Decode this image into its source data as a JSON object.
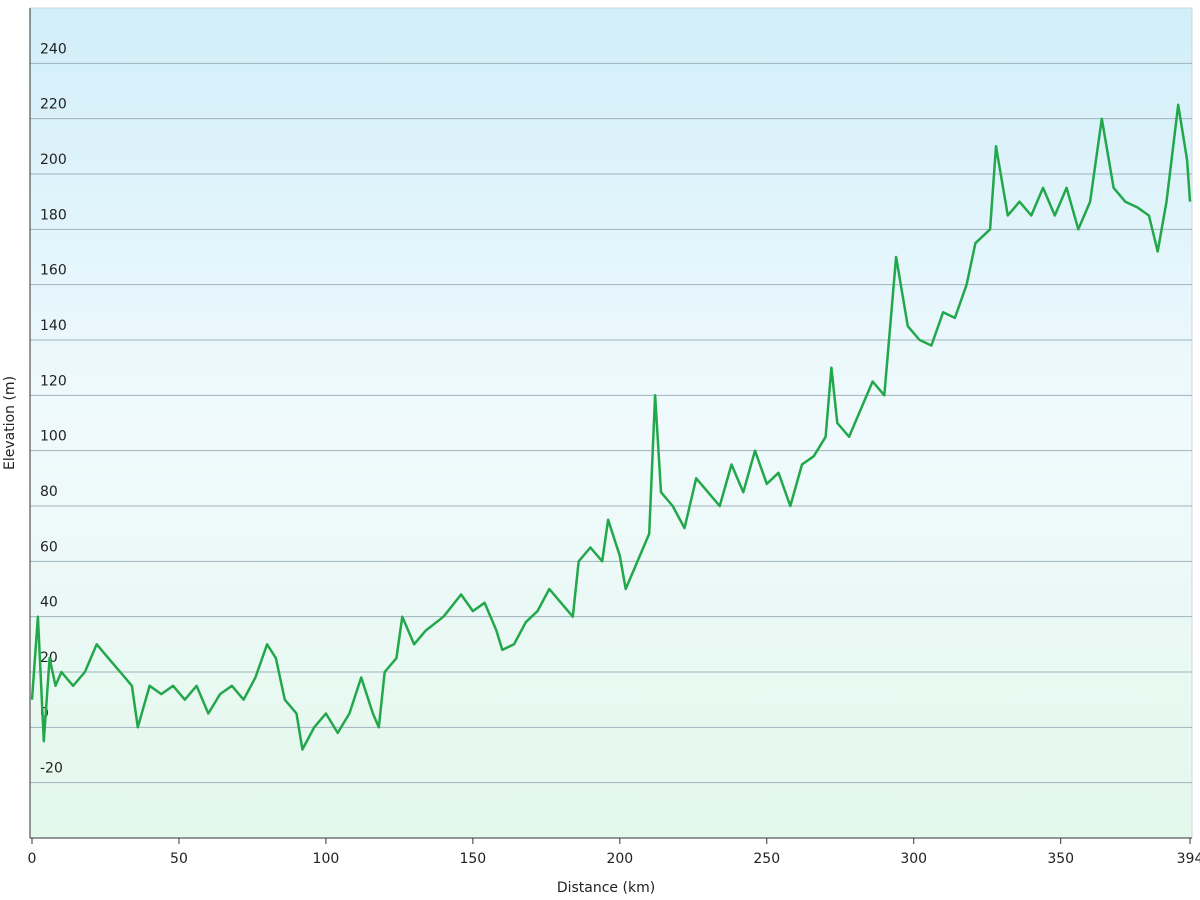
{
  "chart_data": {
    "type": "line",
    "x_label": "Distance (km)",
    "y_label": "Elevation (m)",
    "xlim": [
      0,
      394
    ],
    "xticks": [
      0,
      50,
      100,
      150,
      200,
      250,
      300,
      350,
      394
    ],
    "ylim": [
      -40,
      260
    ],
    "yticks": [
      -20,
      0,
      20,
      40,
      60,
      80,
      100,
      120,
      140,
      160,
      180,
      200,
      220,
      240
    ],
    "grid": true,
    "x": [
      0,
      2,
      4,
      6,
      8,
      10,
      14,
      18,
      22,
      26,
      30,
      34,
      36,
      40,
      44,
      48,
      52,
      56,
      60,
      64,
      68,
      72,
      76,
      80,
      83,
      86,
      90,
      92,
      96,
      100,
      104,
      108,
      112,
      116,
      118,
      120,
      124,
      126,
      130,
      134,
      140,
      146,
      150,
      154,
      158,
      160,
      164,
      168,
      172,
      176,
      180,
      184,
      186,
      190,
      194,
      196,
      200,
      202,
      206,
      210,
      212,
      214,
      218,
      222,
      226,
      230,
      234,
      238,
      242,
      246,
      250,
      254,
      258,
      262,
      266,
      270,
      272,
      274,
      278,
      282,
      286,
      290,
      294,
      298,
      302,
      306,
      310,
      314,
      318,
      321,
      326,
      328,
      332,
      336,
      340,
      344,
      348,
      352,
      356,
      360,
      364,
      368,
      372,
      376,
      380,
      383,
      386,
      390,
      393,
      394
    ],
    "series": [
      {
        "name": "Elevation",
        "color": "#22a84a",
        "values": [
          10,
          40,
          -5,
          25,
          15,
          20,
          15,
          20,
          30,
          25,
          20,
          15,
          0,
          15,
          12,
          15,
          10,
          15,
          5,
          12,
          15,
          10,
          18,
          30,
          25,
          10,
          5,
          -8,
          0,
          5,
          -2,
          5,
          18,
          5,
          0,
          20,
          25,
          40,
          30,
          35,
          40,
          48,
          42,
          45,
          35,
          28,
          30,
          38,
          42,
          50,
          45,
          40,
          60,
          65,
          60,
          75,
          62,
          50,
          60,
          70,
          120,
          85,
          80,
          72,
          90,
          85,
          80,
          95,
          85,
          100,
          88,
          92,
          80,
          95,
          98,
          105,
          130,
          110,
          105,
          115,
          125,
          120,
          170,
          145,
          140,
          138,
          150,
          148,
          160,
          175,
          180,
          210,
          185,
          190,
          185,
          195,
          185,
          195,
          180,
          190,
          220,
          195,
          190,
          188,
          185,
          172,
          190,
          225,
          205,
          190
        ]
      }
    ]
  }
}
